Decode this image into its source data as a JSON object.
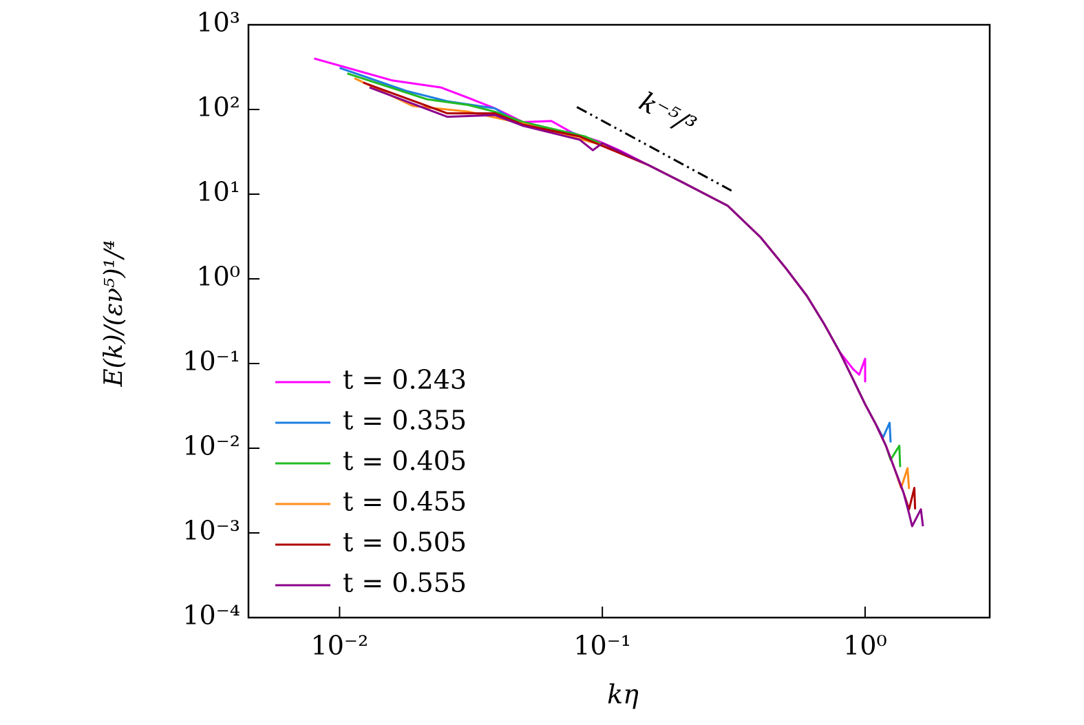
{
  "chart_data": {
    "type": "line",
    "xlabel": "kη",
    "ylabel": "E(k)/(εν⁵)¹/⁴",
    "xscale": "log",
    "yscale": "log",
    "xlim": [
      0.0045,
      2.98
    ],
    "ylim": [
      0.0001,
      1000
    ],
    "xticks": [
      {
        "value": 0.01,
        "label": "10⁻²"
      },
      {
        "value": 0.1,
        "label": "10⁻¹"
      },
      {
        "value": 1,
        "label": "10⁰"
      }
    ],
    "yticks": [
      {
        "value": 0.0001,
        "label": "10⁻⁴"
      },
      {
        "value": 0.001,
        "label": "10⁻³"
      },
      {
        "value": 0.01,
        "label": "10⁻²"
      },
      {
        "value": 0.1,
        "label": "10⁻¹"
      },
      {
        "value": 1,
        "label": "10⁰"
      },
      {
        "value": 10,
        "label": "10¹"
      },
      {
        "value": 100,
        "label": "10²"
      },
      {
        "value": 1000,
        "label": "10³"
      }
    ],
    "legend": "lower left",
    "reference_line": {
      "label": "k⁻⁵/³",
      "x": [
        0.08,
        0.31
      ],
      "y": [
        107,
        11
      ]
    },
    "series": [
      {
        "name": "t = 0.243",
        "color": "#ff00ff",
        "x": [
          0.008,
          0.0159,
          0.0243,
          0.0309,
          0.039,
          0.05,
          0.064,
          0.077,
          0.097,
          0.116,
          0.15,
          0.2,
          0.3,
          0.4,
          0.5,
          0.6,
          0.7,
          0.8,
          0.9,
          0.95,
          1.0,
          1.0
        ],
        "values": [
          400,
          220,
          182,
          137,
          103,
          71,
          73,
          53,
          42,
          33,
          22,
          14,
          7.3,
          3.1,
          1.33,
          0.63,
          0.29,
          0.137,
          0.086,
          0.074,
          0.114,
          0.06
        ]
      },
      {
        "name": "t = 0.355",
        "color": "#1f7fe0",
        "x": [
          0.01,
          0.0179,
          0.0257,
          0.039,
          0.05,
          0.077,
          0.097,
          0.15,
          0.2,
          0.3,
          0.4,
          0.5,
          0.6,
          0.7,
          0.8,
          0.9,
          1.0,
          1.1,
          1.17,
          1.24,
          1.25
        ],
        "values": [
          310,
          166,
          125,
          103,
          64,
          53,
          40,
          22,
          14,
          7.3,
          3.1,
          1.33,
          0.63,
          0.29,
          0.137,
          0.065,
          0.033,
          0.019,
          0.0134,
          0.02,
          0.0117
        ]
      },
      {
        "name": "t = 0.405",
        "color": "#22bb22",
        "x": [
          0.0107,
          0.0215,
          0.0309,
          0.039,
          0.05,
          0.086,
          0.15,
          0.2,
          0.3,
          0.4,
          0.5,
          0.6,
          0.7,
          0.8,
          0.9,
          1.0,
          1.1,
          1.2,
          1.25,
          1.35,
          1.36
        ],
        "values": [
          266,
          132,
          113,
          94,
          71,
          48,
          22,
          14,
          7.3,
          3.1,
          1.33,
          0.63,
          0.29,
          0.137,
          0.065,
          0.033,
          0.019,
          0.0107,
          0.0073,
          0.0107,
          0.006
        ]
      },
      {
        "name": "t = 0.455",
        "color": "#ff8c1a",
        "x": [
          0.0114,
          0.019,
          0.031,
          0.05,
          0.1,
          0.15,
          0.2,
          0.3,
          0.4,
          0.5,
          0.6,
          0.7,
          0.8,
          0.9,
          1.0,
          1.1,
          1.2,
          1.3,
          1.37,
          1.45,
          1.47
        ],
        "values": [
          234,
          110,
          94,
          68,
          38,
          22,
          14,
          7.3,
          3.1,
          1.33,
          0.63,
          0.29,
          0.137,
          0.065,
          0.033,
          0.019,
          0.0107,
          0.0055,
          0.0034,
          0.0058,
          0.0033
        ]
      },
      {
        "name": "t = 0.505",
        "color": "#b00000",
        "x": [
          0.0123,
          0.0257,
          0.039,
          0.05,
          0.082,
          0.15,
          0.2,
          0.3,
          0.4,
          0.5,
          0.6,
          0.7,
          0.8,
          0.9,
          1.0,
          1.1,
          1.2,
          1.3,
          1.4,
          1.47,
          1.54,
          1.55
        ],
        "values": [
          208,
          90,
          90,
          66,
          48,
          22,
          14,
          7.3,
          3.1,
          1.33,
          0.63,
          0.29,
          0.137,
          0.065,
          0.033,
          0.019,
          0.0107,
          0.0055,
          0.003,
          0.0019,
          0.0034,
          0.0019
        ]
      },
      {
        "name": "t = 0.555",
        "color": "#8b008b",
        "x": [
          0.013,
          0.0257,
          0.039,
          0.05,
          0.082,
          0.092,
          0.1,
          0.15,
          0.2,
          0.3,
          0.4,
          0.5,
          0.6,
          0.7,
          0.8,
          0.9,
          1.0,
          1.1,
          1.2,
          1.3,
          1.4,
          1.47,
          1.51,
          1.63,
          1.66
        ],
        "values": [
          182,
          82,
          86,
          64,
          44,
          33,
          40,
          22,
          14,
          7.3,
          3.1,
          1.33,
          0.63,
          0.29,
          0.137,
          0.065,
          0.033,
          0.019,
          0.0107,
          0.0055,
          0.003,
          0.0017,
          0.0012,
          0.0019,
          0.0012
        ]
      }
    ]
  }
}
